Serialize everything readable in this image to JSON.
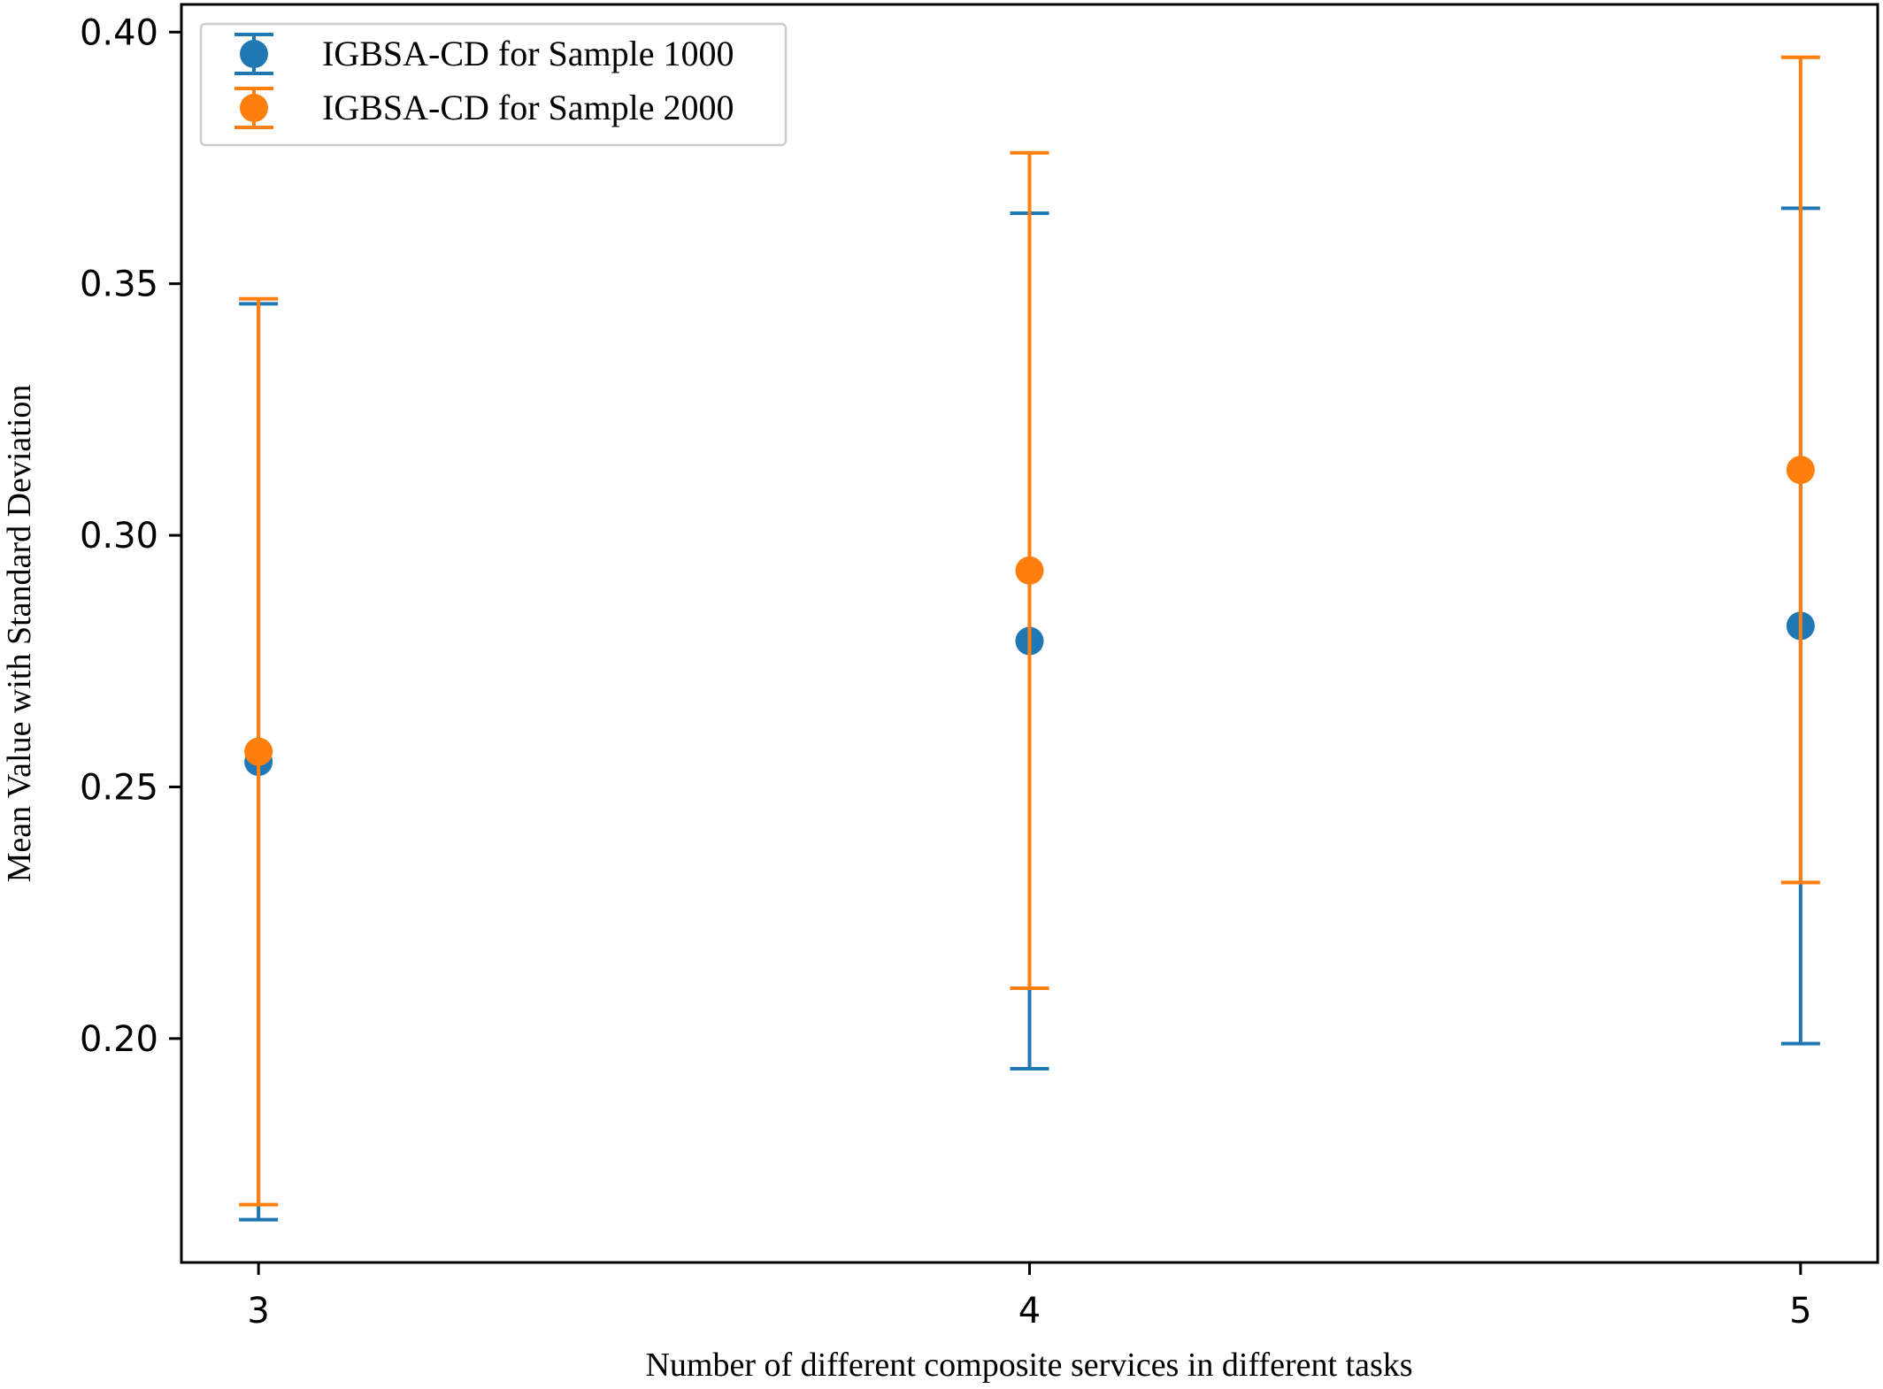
{
  "chart_data": {
    "type": "scatter",
    "title": "",
    "xlabel": "Number of different composite services in different tasks",
    "ylabel": "Mean Value with Standard Deviation",
    "x": [
      3,
      4,
      5
    ],
    "xticks": [
      "3",
      "4",
      "5"
    ],
    "xlim": [
      2.9,
      5.1
    ],
    "yticks": [
      "0.20",
      "0.25",
      "0.30",
      "0.35",
      "0.40"
    ],
    "ytick_values": [
      0.2,
      0.25,
      0.3,
      0.35,
      0.4
    ],
    "ylim": [
      0.1555,
      0.4055
    ],
    "grid": false,
    "legend_position": "top-left",
    "series": [
      {
        "name": "IGBSA-CD for Sample 1000",
        "color": "#1f77b4",
        "mean": [
          0.255,
          0.279,
          0.282
        ],
        "std": [
          0.091,
          0.085,
          0.083
        ]
      },
      {
        "name": "IGBSA-CD for Sample 2000",
        "color": "#ff7f0e",
        "mean": [
          0.257,
          0.293,
          0.313
        ],
        "std": [
          0.09,
          0.083,
          0.082
        ]
      }
    ]
  }
}
